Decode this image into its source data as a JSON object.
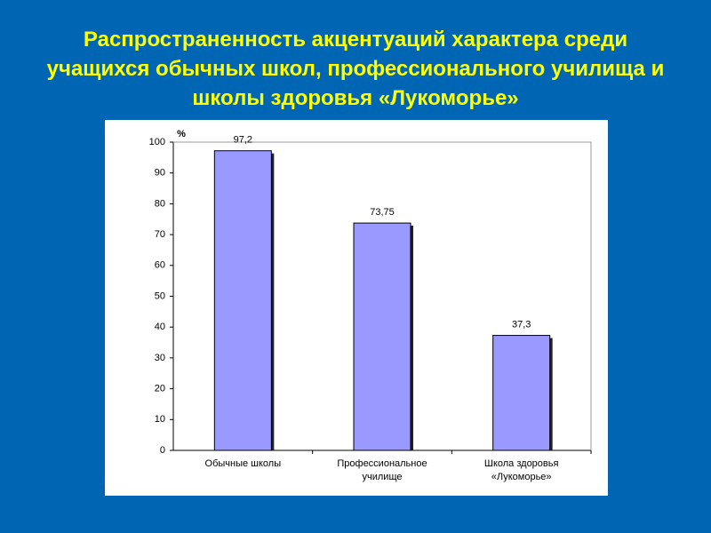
{
  "chart_data": {
    "type": "bar",
    "title": "Распространенность акцентуаций характера среди учащихся обычных школ, профессионального училища и школы здоровья «Лукоморье»",
    "y_unit": "%",
    "categories": [
      "Обычные школы",
      "Профессиональное училище",
      "Школа здоровья «Лукоморье»"
    ],
    "values": [
      97.2,
      73.75,
      37.3
    ],
    "value_labels": [
      "97,2",
      "73,75",
      "37,3"
    ],
    "color": "#9999ff",
    "ylim": [
      0,
      100
    ],
    "yticks": [
      0,
      10,
      20,
      30,
      40,
      50,
      60,
      70,
      80,
      90,
      100
    ],
    "grid": false
  }
}
